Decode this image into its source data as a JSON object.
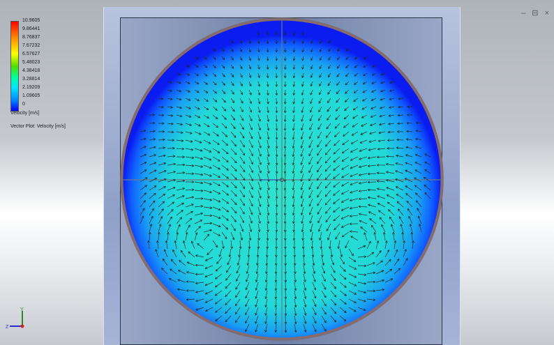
{
  "legend": {
    "labels": [
      "10.9605",
      "9.86441",
      "8.76837",
      "7.67232",
      "6.57627",
      "5.48023",
      "4.38418",
      "3.28814",
      "2.19209",
      "1.09605",
      "0"
    ],
    "title": "Velocity [m/s]",
    "vector_title": "Vector Plot: Velocity [m/s]"
  },
  "window": {
    "controls": "– ⊟ ×"
  },
  "triad": {
    "y_label": "Y",
    "z_label": "Z"
  },
  "colors": {
    "high": "#ff0000",
    "mid": "#00ffcc",
    "low": "#0000ff"
  },
  "icons": [
    "minimize-icon",
    "restore-icon",
    "close-icon",
    "axis-triad-icon",
    "origin-triad-icon"
  ]
}
